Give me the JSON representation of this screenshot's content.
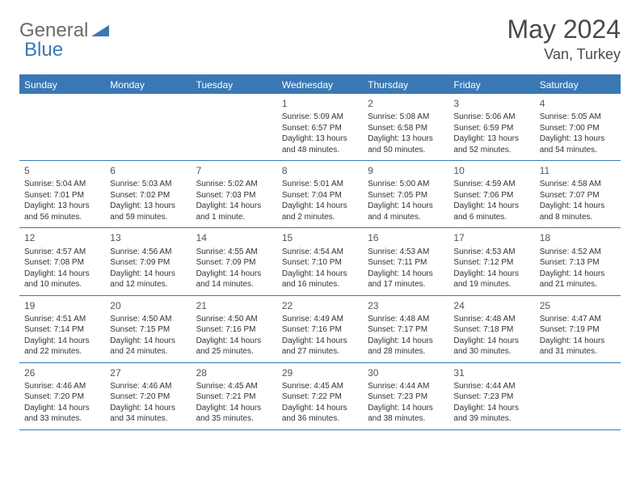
{
  "brand": {
    "word1": "General",
    "word2": "Blue"
  },
  "title": {
    "month": "May 2024",
    "location": "Van, Turkey"
  },
  "dayNames": [
    "Sunday",
    "Monday",
    "Tuesday",
    "Wednesday",
    "Thursday",
    "Friday",
    "Saturday"
  ],
  "colors": {
    "accent": "#3a78b5",
    "text": "#4a4a4a",
    "cellText": "#333333",
    "background": "#ffffff"
  },
  "fonts": {
    "title_size": 32,
    "location_size": 18,
    "dayheader_size": 12,
    "daynum_size": 12,
    "cell_size": 10
  },
  "layout": {
    "cols": 7,
    "rows": 5
  },
  "weeks": [
    [
      {
        "day": "",
        "sunrise": "",
        "sunset": "",
        "line3": "",
        "line4": ""
      },
      {
        "day": "",
        "sunrise": "",
        "sunset": "",
        "line3": "",
        "line4": ""
      },
      {
        "day": "",
        "sunrise": "",
        "sunset": "",
        "line3": "",
        "line4": ""
      },
      {
        "day": "1",
        "sunrise": "Sunrise: 5:09 AM",
        "sunset": "Sunset: 6:57 PM",
        "line3": "Daylight: 13 hours",
        "line4": "and 48 minutes."
      },
      {
        "day": "2",
        "sunrise": "Sunrise: 5:08 AM",
        "sunset": "Sunset: 6:58 PM",
        "line3": "Daylight: 13 hours",
        "line4": "and 50 minutes."
      },
      {
        "day": "3",
        "sunrise": "Sunrise: 5:06 AM",
        "sunset": "Sunset: 6:59 PM",
        "line3": "Daylight: 13 hours",
        "line4": "and 52 minutes."
      },
      {
        "day": "4",
        "sunrise": "Sunrise: 5:05 AM",
        "sunset": "Sunset: 7:00 PM",
        "line3": "Daylight: 13 hours",
        "line4": "and 54 minutes."
      }
    ],
    [
      {
        "day": "5",
        "sunrise": "Sunrise: 5:04 AM",
        "sunset": "Sunset: 7:01 PM",
        "line3": "Daylight: 13 hours",
        "line4": "and 56 minutes."
      },
      {
        "day": "6",
        "sunrise": "Sunrise: 5:03 AM",
        "sunset": "Sunset: 7:02 PM",
        "line3": "Daylight: 13 hours",
        "line4": "and 59 minutes."
      },
      {
        "day": "7",
        "sunrise": "Sunrise: 5:02 AM",
        "sunset": "Sunset: 7:03 PM",
        "line3": "Daylight: 14 hours",
        "line4": "and 1 minute."
      },
      {
        "day": "8",
        "sunrise": "Sunrise: 5:01 AM",
        "sunset": "Sunset: 7:04 PM",
        "line3": "Daylight: 14 hours",
        "line4": "and 2 minutes."
      },
      {
        "day": "9",
        "sunrise": "Sunrise: 5:00 AM",
        "sunset": "Sunset: 7:05 PM",
        "line3": "Daylight: 14 hours",
        "line4": "and 4 minutes."
      },
      {
        "day": "10",
        "sunrise": "Sunrise: 4:59 AM",
        "sunset": "Sunset: 7:06 PM",
        "line3": "Daylight: 14 hours",
        "line4": "and 6 minutes."
      },
      {
        "day": "11",
        "sunrise": "Sunrise: 4:58 AM",
        "sunset": "Sunset: 7:07 PM",
        "line3": "Daylight: 14 hours",
        "line4": "and 8 minutes."
      }
    ],
    [
      {
        "day": "12",
        "sunrise": "Sunrise: 4:57 AM",
        "sunset": "Sunset: 7:08 PM",
        "line3": "Daylight: 14 hours",
        "line4": "and 10 minutes."
      },
      {
        "day": "13",
        "sunrise": "Sunrise: 4:56 AM",
        "sunset": "Sunset: 7:09 PM",
        "line3": "Daylight: 14 hours",
        "line4": "and 12 minutes."
      },
      {
        "day": "14",
        "sunrise": "Sunrise: 4:55 AM",
        "sunset": "Sunset: 7:09 PM",
        "line3": "Daylight: 14 hours",
        "line4": "and 14 minutes."
      },
      {
        "day": "15",
        "sunrise": "Sunrise: 4:54 AM",
        "sunset": "Sunset: 7:10 PM",
        "line3": "Daylight: 14 hours",
        "line4": "and 16 minutes."
      },
      {
        "day": "16",
        "sunrise": "Sunrise: 4:53 AM",
        "sunset": "Sunset: 7:11 PM",
        "line3": "Daylight: 14 hours",
        "line4": "and 17 minutes."
      },
      {
        "day": "17",
        "sunrise": "Sunrise: 4:53 AM",
        "sunset": "Sunset: 7:12 PM",
        "line3": "Daylight: 14 hours",
        "line4": "and 19 minutes."
      },
      {
        "day": "18",
        "sunrise": "Sunrise: 4:52 AM",
        "sunset": "Sunset: 7:13 PM",
        "line3": "Daylight: 14 hours",
        "line4": "and 21 minutes."
      }
    ],
    [
      {
        "day": "19",
        "sunrise": "Sunrise: 4:51 AM",
        "sunset": "Sunset: 7:14 PM",
        "line3": "Daylight: 14 hours",
        "line4": "and 22 minutes."
      },
      {
        "day": "20",
        "sunrise": "Sunrise: 4:50 AM",
        "sunset": "Sunset: 7:15 PM",
        "line3": "Daylight: 14 hours",
        "line4": "and 24 minutes."
      },
      {
        "day": "21",
        "sunrise": "Sunrise: 4:50 AM",
        "sunset": "Sunset: 7:16 PM",
        "line3": "Daylight: 14 hours",
        "line4": "and 25 minutes."
      },
      {
        "day": "22",
        "sunrise": "Sunrise: 4:49 AM",
        "sunset": "Sunset: 7:16 PM",
        "line3": "Daylight: 14 hours",
        "line4": "and 27 minutes."
      },
      {
        "day": "23",
        "sunrise": "Sunrise: 4:48 AM",
        "sunset": "Sunset: 7:17 PM",
        "line3": "Daylight: 14 hours",
        "line4": "and 28 minutes."
      },
      {
        "day": "24",
        "sunrise": "Sunrise: 4:48 AM",
        "sunset": "Sunset: 7:18 PM",
        "line3": "Daylight: 14 hours",
        "line4": "and 30 minutes."
      },
      {
        "day": "25",
        "sunrise": "Sunrise: 4:47 AM",
        "sunset": "Sunset: 7:19 PM",
        "line3": "Daylight: 14 hours",
        "line4": "and 31 minutes."
      }
    ],
    [
      {
        "day": "26",
        "sunrise": "Sunrise: 4:46 AM",
        "sunset": "Sunset: 7:20 PM",
        "line3": "Daylight: 14 hours",
        "line4": "and 33 minutes."
      },
      {
        "day": "27",
        "sunrise": "Sunrise: 4:46 AM",
        "sunset": "Sunset: 7:20 PM",
        "line3": "Daylight: 14 hours",
        "line4": "and 34 minutes."
      },
      {
        "day": "28",
        "sunrise": "Sunrise: 4:45 AM",
        "sunset": "Sunset: 7:21 PM",
        "line3": "Daylight: 14 hours",
        "line4": "and 35 minutes."
      },
      {
        "day": "29",
        "sunrise": "Sunrise: 4:45 AM",
        "sunset": "Sunset: 7:22 PM",
        "line3": "Daylight: 14 hours",
        "line4": "and 36 minutes."
      },
      {
        "day": "30",
        "sunrise": "Sunrise: 4:44 AM",
        "sunset": "Sunset: 7:23 PM",
        "line3": "Daylight: 14 hours",
        "line4": "and 38 minutes."
      },
      {
        "day": "31",
        "sunrise": "Sunrise: 4:44 AM",
        "sunset": "Sunset: 7:23 PM",
        "line3": "Daylight: 14 hours",
        "line4": "and 39 minutes."
      },
      {
        "day": "",
        "sunrise": "",
        "sunset": "",
        "line3": "",
        "line4": ""
      }
    ]
  ]
}
